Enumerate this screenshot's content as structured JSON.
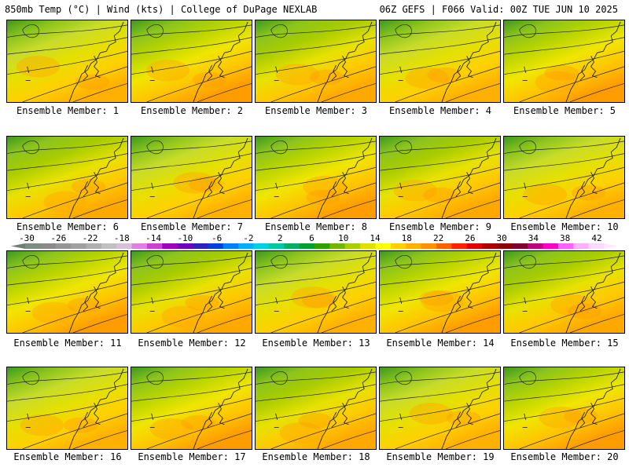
{
  "header": {
    "left": "850mb Temp (°C) | Wind (kts) | College of DuPage NEXLAB",
    "right": "06Z GEFS | F066 Valid: 00Z TUE JUN 10 2025"
  },
  "members": [
    {
      "label": "Ensemble Member: 1"
    },
    {
      "label": "Ensemble Member: 2"
    },
    {
      "label": "Ensemble Member: 3"
    },
    {
      "label": "Ensemble Member: 4"
    },
    {
      "label": "Ensemble Member: 5"
    },
    {
      "label": "Ensemble Member: 6"
    },
    {
      "label": "Ensemble Member: 7"
    },
    {
      "label": "Ensemble Member: 8"
    },
    {
      "label": "Ensemble Member: 9"
    },
    {
      "label": "Ensemble Member: 10"
    },
    {
      "label": "Ensemble Member: 11"
    },
    {
      "label": "Ensemble Member: 12"
    },
    {
      "label": "Ensemble Member: 13"
    },
    {
      "label": "Ensemble Member: 14"
    },
    {
      "label": "Ensemble Member: 15"
    },
    {
      "label": "Ensemble Member: 16"
    },
    {
      "label": "Ensemble Member: 17"
    },
    {
      "label": "Ensemble Member: 18"
    },
    {
      "label": "Ensemble Member: 19"
    },
    {
      "label": "Ensemble Member: 20"
    }
  ],
  "colorbar": {
    "ticks": [
      "-30",
      "-26",
      "-22",
      "-18",
      "-14",
      "-10",
      "-6",
      "-2",
      "2",
      "6",
      "10",
      "14",
      "18",
      "22",
      "26",
      "30",
      "34",
      "38",
      "42"
    ],
    "colors": [
      "#7f8c80",
      "#8a8a8a",
      "#959595",
      "#a0a0a0",
      "#afafaf",
      "#c0c0c0",
      "#d8c0d8",
      "#e080e0",
      "#d040d0",
      "#a000c0",
      "#7000c0",
      "#3020c0",
      "#0040e0",
      "#0080ff",
      "#00b0ff",
      "#00d0e0",
      "#00c8a0",
      "#00b060",
      "#00a030",
      "#30a000",
      "#70b800",
      "#a8d000",
      "#e0e000",
      "#ffff00",
      "#ffd000",
      "#ffb000",
      "#ff9000",
      "#ff6000",
      "#ff2000",
      "#e00000",
      "#b00000",
      "#900000",
      "#800030",
      "#c00080",
      "#ff00c0",
      "#ff60ff",
      "#ffb0ff",
      "#ffd8ff"
    ]
  }
}
